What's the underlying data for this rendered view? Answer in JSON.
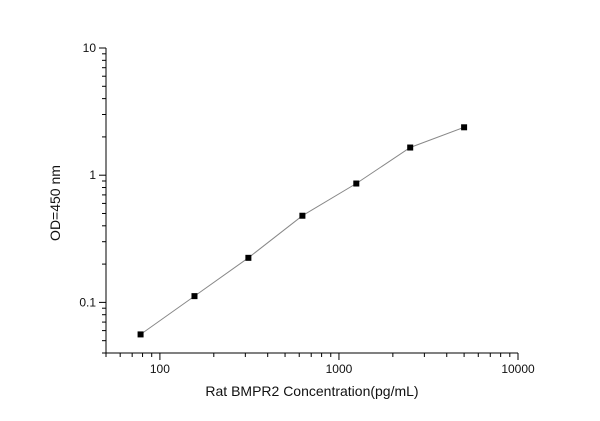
{
  "chart_data": {
    "type": "scatter",
    "title": "",
    "xlabel": "Rat BMPR2 Concentration(pg/mL)",
    "ylabel": "OD=450 nm",
    "x_scale": "log",
    "y_scale": "log",
    "xlim": [
      50,
      10000
    ],
    "ylim": [
      0.04,
      10
    ],
    "x_ticks": [
      {
        "value": 100,
        "label": "100"
      },
      {
        "value": 1000,
        "label": "1000"
      },
      {
        "value": 10000,
        "label": "10000"
      }
    ],
    "y_ticks": [
      {
        "value": 0.1,
        "label": "0.1"
      },
      {
        "value": 1,
        "label": "1"
      },
      {
        "value": 10,
        "label": "10"
      }
    ],
    "grid": false,
    "legend": "none",
    "line_color": "#888888",
    "marker_color": "#000000",
    "series": [
      {
        "x": [
          78,
          156,
          312,
          625,
          1250,
          2500,
          5000
        ],
        "y": [
          0.056,
          0.112,
          0.224,
          0.48,
          0.86,
          1.65,
          2.38
        ]
      }
    ]
  }
}
